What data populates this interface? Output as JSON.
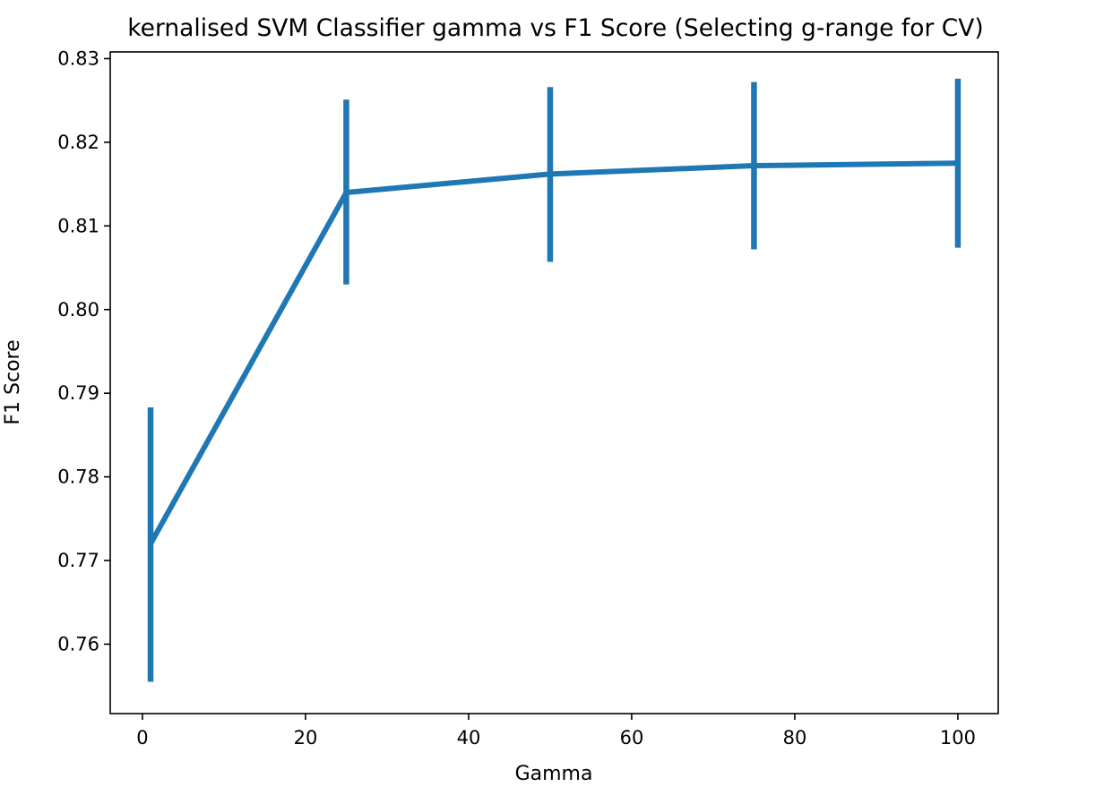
{
  "chart_data": {
    "type": "line",
    "title": "kernalised SVM Classifier gamma vs F1 Score (Selecting g-range for CV)",
    "xlabel": "Gamma",
    "ylabel": "F1 Score",
    "xlim": [
      -3.95,
      104.95
    ],
    "ylim": [
      0.7517,
      0.8308
    ],
    "xticks": [
      0,
      20,
      40,
      60,
      80,
      100
    ],
    "xtick_labels": [
      "0",
      "20",
      "40",
      "60",
      "80",
      "100"
    ],
    "yticks": [
      0.76,
      0.77,
      0.78,
      0.79,
      0.8,
      0.81,
      0.82,
      0.83
    ],
    "ytick_labels": [
      "0.76",
      "0.77",
      "0.78",
      "0.79",
      "0.80",
      "0.81",
      "0.82",
      "0.83"
    ],
    "grid": false,
    "series": [
      {
        "name": "F1 Score",
        "color": "#1f77b4",
        "x": [
          1,
          25,
          50,
          75,
          100
        ],
        "y": [
          0.772,
          0.814,
          0.8162,
          0.8172,
          0.8175
        ],
        "yerr_low": [
          0.7555,
          0.803,
          0.8057,
          0.8072,
          0.8074
        ],
        "yerr_high": [
          0.7883,
          0.8251,
          0.8266,
          0.8272,
          0.8276
        ]
      }
    ]
  }
}
